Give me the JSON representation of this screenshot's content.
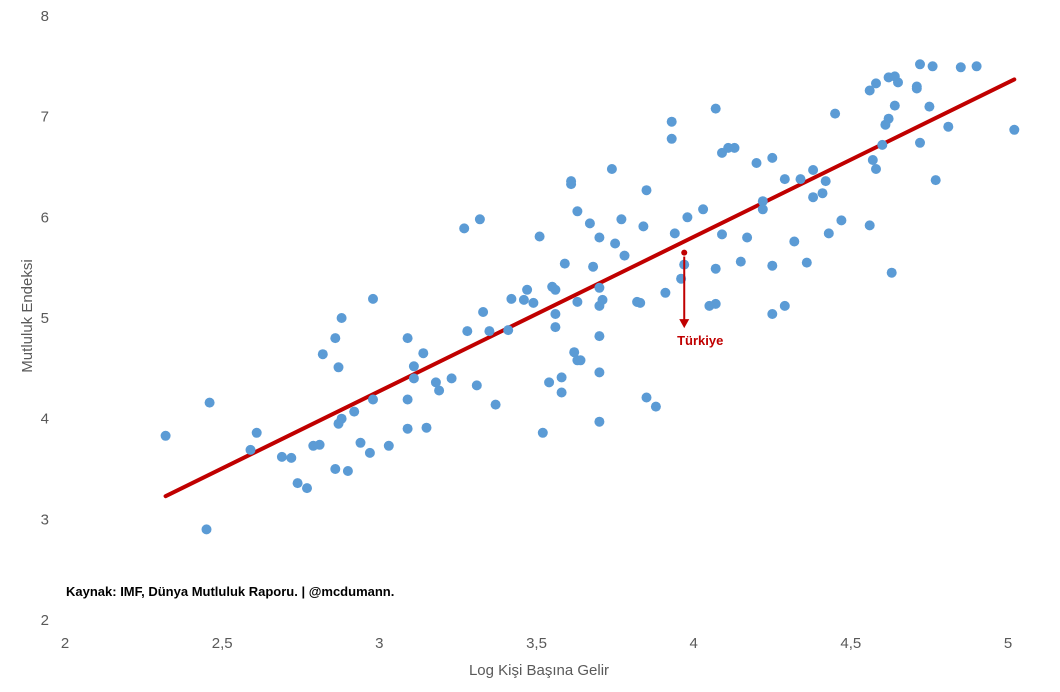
{
  "chart_data": {
    "type": "scatter",
    "title": "",
    "xlabel": "Log Kişi Başına Gelir",
    "ylabel": "Mutluluk Endeksi",
    "xlim": [
      2,
      5
    ],
    "ylim": [
      2,
      8
    ],
    "x_ticks": [
      "2",
      "2,5",
      "3",
      "3,5",
      "4",
      "4,5",
      "5"
    ],
    "y_ticks": [
      "2",
      "3",
      "4",
      "5",
      "6",
      "7",
      "8"
    ],
    "grid": false,
    "colors": {
      "points": "#5b9bd5",
      "trendline": "#c00000",
      "highlight": "#c00000"
    },
    "trendline": {
      "x": [
        2.32,
        5.02
      ],
      "y": [
        3.23,
        7.37
      ]
    },
    "annotation": {
      "text": "Türkiye",
      "x": 3.97,
      "y": 5.65,
      "arrow_to_y": 4.9
    },
    "source": "Kaynak: IMF, Dünya Mutluluk Raporu. | @mcdumann.",
    "points": [
      [
        2.32,
        3.83
      ],
      [
        2.45,
        2.9
      ],
      [
        2.46,
        4.16
      ],
      [
        2.59,
        3.69
      ],
      [
        2.61,
        3.86
      ],
      [
        2.69,
        3.62
      ],
      [
        2.72,
        3.61
      ],
      [
        2.74,
        3.36
      ],
      [
        2.77,
        3.31
      ],
      [
        2.79,
        3.73
      ],
      [
        2.81,
        3.74
      ],
      [
        2.82,
        4.64
      ],
      [
        2.86,
        4.8
      ],
      [
        2.86,
        3.5
      ],
      [
        2.87,
        4.51
      ],
      [
        2.88,
        5.0
      ],
      [
        2.88,
        4.0
      ],
      [
        2.87,
        3.95
      ],
      [
        2.9,
        3.48
      ],
      [
        2.92,
        4.07
      ],
      [
        2.94,
        3.76
      ],
      [
        2.97,
        3.66
      ],
      [
        2.98,
        4.19
      ],
      [
        2.98,
        5.19
      ],
      [
        3.03,
        3.73
      ],
      [
        3.09,
        4.8
      ],
      [
        3.09,
        4.19
      ],
      [
        3.09,
        3.9
      ],
      [
        3.11,
        4.52
      ],
      [
        3.11,
        4.4
      ],
      [
        3.14,
        4.65
      ],
      [
        3.15,
        3.91
      ],
      [
        3.18,
        4.36
      ],
      [
        3.19,
        4.28
      ],
      [
        3.23,
        4.4
      ],
      [
        3.27,
        5.89
      ],
      [
        3.28,
        4.87
      ],
      [
        3.31,
        4.33
      ],
      [
        3.32,
        5.98
      ],
      [
        3.33,
        5.06
      ],
      [
        3.35,
        4.87
      ],
      [
        3.37,
        4.14
      ],
      [
        3.41,
        4.88
      ],
      [
        3.42,
        5.19
      ],
      [
        3.46,
        5.18
      ],
      [
        3.47,
        5.28
      ],
      [
        3.49,
        5.15
      ],
      [
        3.51,
        5.81
      ],
      [
        3.52,
        3.86
      ],
      [
        3.54,
        4.36
      ],
      [
        3.55,
        5.31
      ],
      [
        3.56,
        5.28
      ],
      [
        3.56,
        5.04
      ],
      [
        3.56,
        4.91
      ],
      [
        3.58,
        4.41
      ],
      [
        3.58,
        4.26
      ],
      [
        3.59,
        5.54
      ],
      [
        3.61,
        6.33
      ],
      [
        3.61,
        6.36
      ],
      [
        3.62,
        4.66
      ],
      [
        3.63,
        4.58
      ],
      [
        3.64,
        4.58
      ],
      [
        3.63,
        6.06
      ],
      [
        3.63,
        5.16
      ],
      [
        3.67,
        5.94
      ],
      [
        3.68,
        5.51
      ],
      [
        3.7,
        5.8
      ],
      [
        3.7,
        5.3
      ],
      [
        3.7,
        5.12
      ],
      [
        3.7,
        4.82
      ],
      [
        3.7,
        4.46
      ],
      [
        3.7,
        3.97
      ],
      [
        3.71,
        5.18
      ],
      [
        3.74,
        6.48
      ],
      [
        3.75,
        5.74
      ],
      [
        3.77,
        5.98
      ],
      [
        3.78,
        5.62
      ],
      [
        3.82,
        5.16
      ],
      [
        3.83,
        5.15
      ],
      [
        3.84,
        5.91
      ],
      [
        3.85,
        4.21
      ],
      [
        3.85,
        6.27
      ],
      [
        3.88,
        4.12
      ],
      [
        3.91,
        5.25
      ],
      [
        3.93,
        6.95
      ],
      [
        3.93,
        6.78
      ],
      [
        3.94,
        5.84
      ],
      [
        3.96,
        5.39
      ],
      [
        3.97,
        5.53
      ],
      [
        3.98,
        6.0
      ],
      [
        4.03,
        6.08
      ],
      [
        4.05,
        5.12
      ],
      [
        4.07,
        7.08
      ],
      [
        4.07,
        5.14
      ],
      [
        4.07,
        5.49
      ],
      [
        4.09,
        6.64
      ],
      [
        4.09,
        5.83
      ],
      [
        4.11,
        6.69
      ],
      [
        4.13,
        6.69
      ],
      [
        4.15,
        5.56
      ],
      [
        4.17,
        5.8
      ],
      [
        4.2,
        6.54
      ],
      [
        4.22,
        6.16
      ],
      [
        4.22,
        6.08
      ],
      [
        4.25,
        6.59
      ],
      [
        4.25,
        5.52
      ],
      [
        4.25,
        5.04
      ],
      [
        4.29,
        6.38
      ],
      [
        4.29,
        5.12
      ],
      [
        4.32,
        5.76
      ],
      [
        4.34,
        6.38
      ],
      [
        4.36,
        5.55
      ],
      [
        4.38,
        6.2
      ],
      [
        4.38,
        6.47
      ],
      [
        4.41,
        6.24
      ],
      [
        4.42,
        6.36
      ],
      [
        4.43,
        5.84
      ],
      [
        4.45,
        7.03
      ],
      [
        4.47,
        5.97
      ],
      [
        4.56,
        7.26
      ],
      [
        4.56,
        5.92
      ],
      [
        4.58,
        7.33
      ],
      [
        4.57,
        6.57
      ],
      [
        4.58,
        6.48
      ],
      [
        4.6,
        6.72
      ],
      [
        4.61,
        6.92
      ],
      [
        4.62,
        6.98
      ],
      [
        4.62,
        7.39
      ],
      [
        4.63,
        5.45
      ],
      [
        4.64,
        7.4
      ],
      [
        4.64,
        7.11
      ],
      [
        4.65,
        7.34
      ],
      [
        4.71,
        7.3
      ],
      [
        4.71,
        7.28
      ],
      [
        4.72,
        7.52
      ],
      [
        4.72,
        6.74
      ],
      [
        4.75,
        7.1
      ],
      [
        4.76,
        7.5
      ],
      [
        4.77,
        6.37
      ],
      [
        4.81,
        6.9
      ],
      [
        4.85,
        7.49
      ],
      [
        4.9,
        7.5
      ],
      [
        5.02,
        6.87
      ]
    ]
  }
}
